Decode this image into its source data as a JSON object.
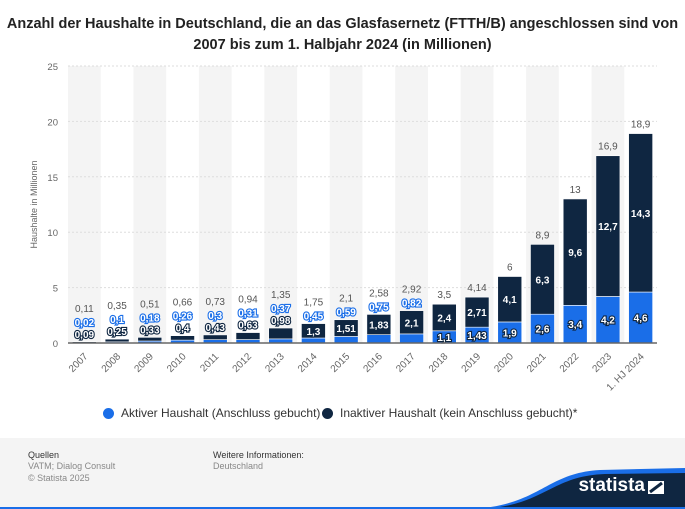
{
  "chart_data": {
    "type": "bar",
    "stacked": true,
    "title": "Anzahl der Haushalte in Deutschland, die an das Glasfasernetz (FTTH/B) angeschlossen sind von 2007 bis zum 1. Halbjahr 2024 (in Millionen)",
    "ylabel": "Haushalte in Millionen",
    "xlabel": "",
    "ylim": [
      0,
      25
    ],
    "yticks": [
      0,
      5,
      10,
      15,
      20,
      25
    ],
    "grid": true,
    "legend_position": "bottom",
    "categories": [
      "2007",
      "2008",
      "2009",
      "2010",
      "2011",
      "2012",
      "2013",
      "2014",
      "2015",
      "2016",
      "2017",
      "2018",
      "2019",
      "2020",
      "2021",
      "2022",
      "2023",
      "1. HJ 2024"
    ],
    "series": [
      {
        "name": "Aktiver Haushalt (Anschluss gebucht)",
        "color": "#1a6ee8",
        "values": [
          0.02,
          0.1,
          0.18,
          0.26,
          0.3,
          0.31,
          0.37,
          0.45,
          0.59,
          0.75,
          0.82,
          1.1,
          1.43,
          1.9,
          2.6,
          3.4,
          4.2,
          4.6
        ],
        "labels": [
          "0,02",
          "0,1",
          "0,18",
          "0,26",
          "0,3",
          "0,31",
          "0,37",
          "0,45",
          "0,59",
          "0,75",
          "0,82",
          "1,1",
          "1,43",
          "1,9",
          "2,6",
          "3,4",
          "4,2",
          "4,6"
        ]
      },
      {
        "name": "Inaktiver Haushalt (kein Anschluss gebucht)*",
        "color": "#0f2641",
        "values": [
          0.09,
          0.25,
          0.33,
          0.4,
          0.43,
          0.63,
          0.98,
          1.3,
          1.51,
          1.83,
          2.1,
          2.4,
          2.71,
          4.1,
          6.3,
          9.6,
          12.7,
          14.3
        ],
        "labels": [
          "0,09",
          "0,25",
          "0,33",
          "0,4",
          "0,43",
          "0,63",
          "0,98",
          "1,3",
          "1,51",
          "1,83",
          "2,1",
          "2,4",
          "2,71",
          "4,1",
          "6,3",
          "9,6",
          "12,7",
          "14,3"
        ]
      }
    ],
    "totals": [
      "0,11",
      "0,35",
      "0,51",
      "0,66",
      "0,73",
      "0,94",
      "1,35",
      "1,75",
      "2,1",
      "2,58",
      "2,92",
      "3,5",
      "4,14",
      "6",
      "8,9",
      "13",
      "16,9",
      "18,9"
    ]
  },
  "footer": {
    "sources_heading": "Quellen",
    "sources": "VATM; Dialog Consult",
    "copyright": "© Statista 2025",
    "info_heading": "Weitere Informationen:",
    "info": "Deutschland",
    "logo": "statista"
  }
}
